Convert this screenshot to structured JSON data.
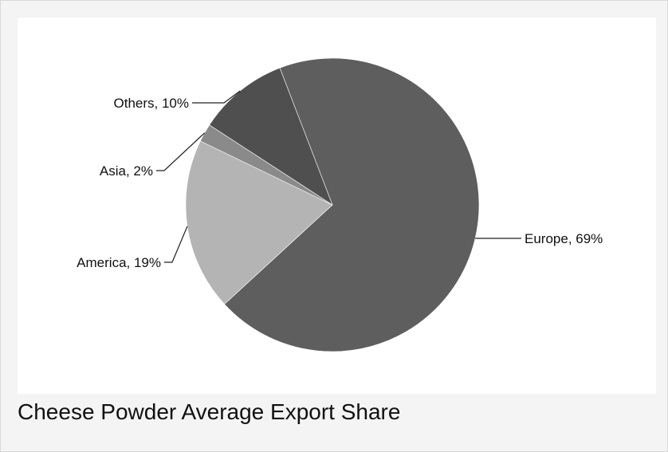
{
  "caption": "Cheese Powder Average Export Share",
  "chart_data": {
    "type": "pie",
    "title": "",
    "slices": [
      {
        "label": "Europe",
        "value": 69,
        "display": "Europe, 69%",
        "color": "#5e5e5e"
      },
      {
        "label": "America",
        "value": 19,
        "display": "America, 19%",
        "color": "#b4b4b4"
      },
      {
        "label": "Asia",
        "value": 2,
        "display": "Asia, 2%",
        "color": "#8a8a8a"
      },
      {
        "label": "Others",
        "value": 10,
        "display": "Others, 10%",
        "color": "#4f4f4f"
      }
    ],
    "legend": "none",
    "labels": "outside with leader lines"
  }
}
